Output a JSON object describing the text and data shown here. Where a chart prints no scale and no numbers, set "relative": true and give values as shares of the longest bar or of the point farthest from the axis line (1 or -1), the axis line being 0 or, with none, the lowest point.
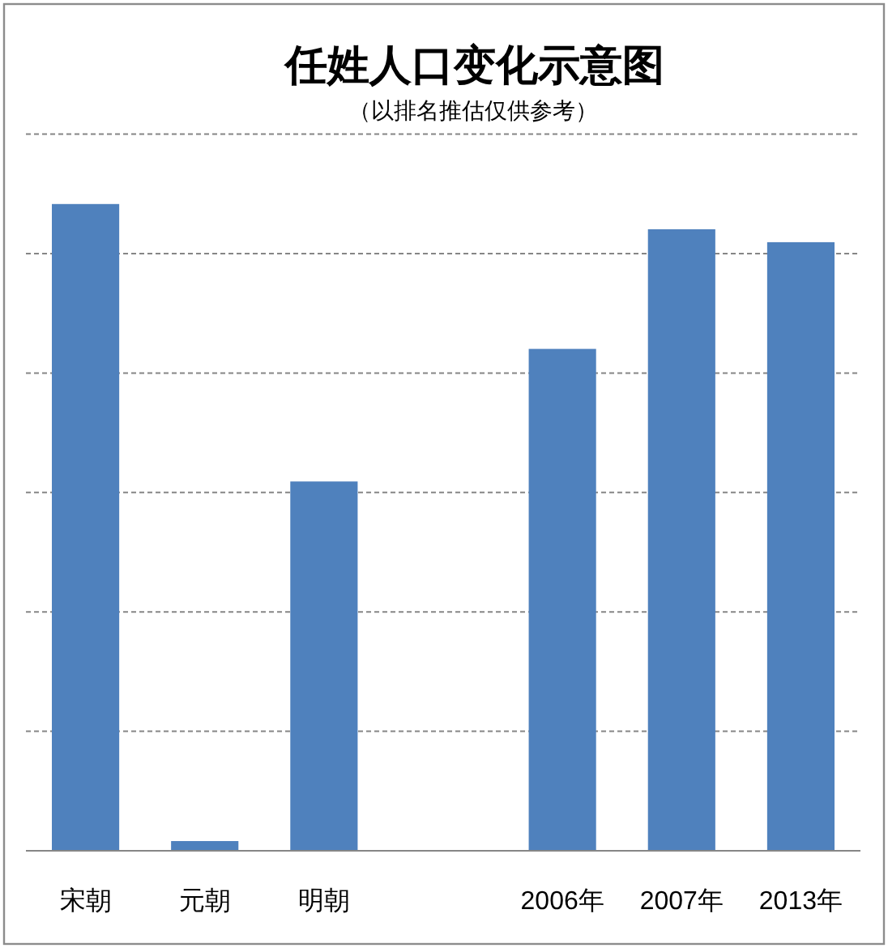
{
  "chart_data": {
    "type": "bar",
    "title": "任姓人口变化示意图",
    "subtitle": "（以排名推估仅供参考）",
    "categories": [
      "宋朝",
      "元朝",
      "明朝",
      null,
      "2006年",
      "2007年",
      "2013年"
    ],
    "values": [
      1,
      0.015,
      0.571,
      null,
      0.776,
      0.961,
      0.941
    ],
    "color": "#4f81bd",
    "relative": true,
    "grid": "y"
  }
}
